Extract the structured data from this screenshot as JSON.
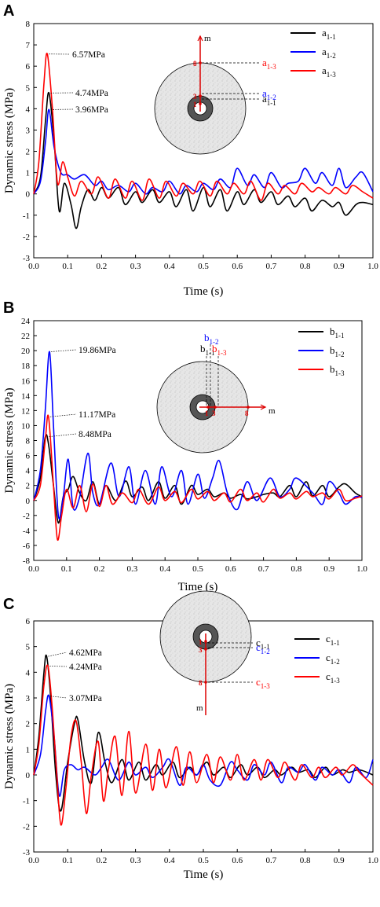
{
  "chart_data": [
    {
      "panel": "A",
      "type": "line",
      "xlabel": "Time (s)",
      "ylabel": "Dynamic stress (MPa)",
      "xlim": [
        0,
        1.0
      ],
      "ylim": [
        -3,
        8
      ],
      "xticks": [
        "0.0",
        "0.1",
        "0.2",
        "0.3",
        "0.4",
        "0.5",
        "0.6",
        "0.7",
        "0.8",
        "0.9",
        "1.0"
      ],
      "yticks": [
        "-3",
        "-2",
        "-1",
        "0",
        "1",
        "2",
        "3",
        "4",
        "5",
        "6",
        "7",
        "8"
      ],
      "grid": false,
      "legend_position": "top-right",
      "series": [
        {
          "name": "a",
          "sub": "1-1",
          "color": "#000000",
          "x": [
            0,
            0.02,
            0.035,
            0.045,
            0.06,
            0.075,
            0.09,
            0.11,
            0.125,
            0.14,
            0.16,
            0.18,
            0.2,
            0.22,
            0.25,
            0.27,
            0.3,
            0.32,
            0.35,
            0.37,
            0.4,
            0.42,
            0.45,
            0.47,
            0.5,
            0.52,
            0.55,
            0.57,
            0.6,
            0.62,
            0.65,
            0.67,
            0.7,
            0.72,
            0.75,
            0.77,
            0.8,
            0.82,
            0.85,
            0.88,
            0.9,
            0.92,
            0.95,
            0.97,
            1.0
          ],
          "y": [
            0,
            0.8,
            3.5,
            4.74,
            2.5,
            -0.8,
            0.5,
            -0.5,
            -1.62,
            -0.6,
            0.2,
            -0.3,
            0.3,
            -0.2,
            0.3,
            -0.5,
            0.1,
            -0.4,
            0.2,
            -0.4,
            0.1,
            -0.6,
            0.2,
            -0.8,
            0.3,
            -0.6,
            0.2,
            -0.8,
            0.1,
            -0.5,
            0.2,
            -0.4,
            0.1,
            -0.5,
            -0.1,
            -0.6,
            -0.2,
            -0.8,
            -0.3,
            -0.6,
            -0.4,
            -1.0,
            -0.5,
            -0.4,
            -0.5
          ]
        },
        {
          "name": "a",
          "sub": "1-2",
          "color": "#0000ff",
          "x": [
            0,
            0.02,
            0.035,
            0.045,
            0.06,
            0.08,
            0.1,
            0.12,
            0.15,
            0.18,
            0.2,
            0.22,
            0.25,
            0.28,
            0.3,
            0.33,
            0.35,
            0.38,
            0.4,
            0.43,
            0.45,
            0.48,
            0.5,
            0.53,
            0.55,
            0.58,
            0.6,
            0.63,
            0.65,
            0.68,
            0.7,
            0.73,
            0.75,
            0.78,
            0.8,
            0.83,
            0.85,
            0.88,
            0.9,
            0.92,
            0.95,
            0.97,
            1.0
          ],
          "y": [
            0,
            0.6,
            2.5,
            3.96,
            2.2,
            1.0,
            0.9,
            0.7,
            0.9,
            0.4,
            0.6,
            0.2,
            0.4,
            0.1,
            0.5,
            0.0,
            0.3,
            0.1,
            0.6,
            0.0,
            0.4,
            0.1,
            0.5,
            0.2,
            0.7,
            0.3,
            1.2,
            0.4,
            0.9,
            0.3,
            1.0,
            0.3,
            0.5,
            0.6,
            1.2,
            0.5,
            1.0,
            0.4,
            1.2,
            0.3,
            0.8,
            1.0,
            0.1
          ]
        },
        {
          "name": "a",
          "sub": "1-3",
          "color": "#ff0000",
          "x": [
            0,
            0.015,
            0.03,
            0.04,
            0.055,
            0.07,
            0.085,
            0.1,
            0.12,
            0.14,
            0.17,
            0.19,
            0.22,
            0.24,
            0.27,
            0.29,
            0.32,
            0.34,
            0.37,
            0.39,
            0.42,
            0.44,
            0.47,
            0.49,
            0.52,
            0.54,
            0.57,
            0.59,
            0.62,
            0.64,
            0.67,
            0.69,
            0.72,
            0.74,
            0.77,
            0.79,
            0.82,
            0.84,
            0.87,
            0.89,
            0.92,
            0.94,
            0.97,
            1.0
          ],
          "y": [
            0,
            1.5,
            5.2,
            6.57,
            4.0,
            0.5,
            1.5,
            0.8,
            -0.1,
            0.6,
            0.0,
            0.8,
            -0.2,
            0.7,
            -0.2,
            0.6,
            -0.3,
            0.7,
            -0.2,
            0.6,
            -0.1,
            0.5,
            0.0,
            0.6,
            -0.1,
            0.6,
            0.0,
            0.5,
            0.0,
            0.6,
            -0.3,
            0.5,
            0.0,
            0.4,
            0.0,
            0.5,
            0.1,
            0.3,
            0.0,
            0.3,
            0.0,
            0.4,
            0.1,
            -0.2
          ]
        }
      ],
      "annotations": [
        {
          "text": "6.57MPa",
          "x": 0.04,
          "y": 6.57
        },
        {
          "text": "4.74MPa",
          "x": 0.045,
          "y": 4.74
        },
        {
          "text": "3.96MPa",
          "x": 0.045,
          "y": 3.96
        }
      ],
      "diagram": {
        "axis_label": "m",
        "points": [
          "1",
          "3",
          "8"
        ],
        "labels": [
          {
            "name": "a",
            "sub": "1-3",
            "color": "#ff0000"
          },
          {
            "name": "a",
            "sub": "1-2",
            "color": "#0000ff"
          },
          {
            "name": "a",
            "sub": "1-1",
            "color": "#000000"
          }
        ]
      }
    },
    {
      "panel": "B",
      "type": "line",
      "xlabel": "Time (s)",
      "ylabel": "Dynamic stress (MPa)",
      "xlim": [
        0,
        1.0
      ],
      "ylim": [
        -8,
        24
      ],
      "xticks": [
        "0.0",
        "0.1",
        "0.2",
        "0.3",
        "0.4",
        "0.5",
        "0.6",
        "0.7",
        "0.8",
        "0.9",
        "1.0"
      ],
      "yticks": [
        "-8",
        "-6",
        "-4",
        "-2",
        "0",
        "2",
        "4",
        "6",
        "8",
        "10",
        "12",
        "14",
        "16",
        "18",
        "20",
        "22",
        "24"
      ],
      "grid": false,
      "legend_position": "top-right",
      "series": [
        {
          "name": "b",
          "sub": "1-1",
          "color": "#000000",
          "x": [
            0,
            0.02,
            0.035,
            0.045,
            0.06,
            0.075,
            0.09,
            0.105,
            0.12,
            0.14,
            0.16,
            0.18,
            0.2,
            0.22,
            0.25,
            0.28,
            0.3,
            0.33,
            0.35,
            0.38,
            0.4,
            0.43,
            0.45,
            0.48,
            0.5,
            0.53,
            0.55,
            0.58,
            0.6,
            0.63,
            0.65,
            0.68,
            0.7,
            0.73,
            0.75,
            0.78,
            0.8,
            0.83,
            0.85,
            0.88,
            0.9,
            0.93,
            0.95,
            0.98,
            1.0
          ],
          "y": [
            0,
            3.0,
            8.48,
            7.5,
            2.0,
            -3.0,
            0.5,
            1.5,
            3.2,
            1.0,
            0.0,
            2.5,
            -0.5,
            2.0,
            0.0,
            2.6,
            0.5,
            1.8,
            0.0,
            2.5,
            0.3,
            2.0,
            -0.5,
            2.0,
            0.8,
            1.5,
            0.5,
            1.0,
            0.3,
            0.8,
            0.2,
            0.5,
            0.8,
            1.0,
            0.5,
            2.0,
            0.5,
            2.5,
            0.6,
            2.0,
            0.5,
            1.8,
            2.2,
            1.0,
            0.5
          ]
        },
        {
          "name": "b",
          "sub": "1-2",
          "color": "#0000ff",
          "x": [
            0,
            0.02,
            0.035,
            0.048,
            0.06,
            0.075,
            0.09,
            0.105,
            0.12,
            0.14,
            0.165,
            0.18,
            0.2,
            0.235,
            0.26,
            0.29,
            0.31,
            0.34,
            0.37,
            0.39,
            0.42,
            0.45,
            0.47,
            0.5,
            0.52,
            0.545,
            0.565,
            0.59,
            0.62,
            0.65,
            0.68,
            0.72,
            0.75,
            0.78,
            0.8,
            0.85,
            0.88,
            0.9,
            0.93,
            0.95,
            0.98,
            1.0
          ],
          "y": [
            0,
            4.0,
            12.0,
            19.86,
            10.0,
            -2.0,
            0.5,
            5.5,
            -1.0,
            0.5,
            6.3,
            1.0,
            -0.5,
            5.0,
            0.5,
            4.5,
            -0.5,
            4.0,
            -0.5,
            4.5,
            0.5,
            4.0,
            -0.5,
            3.5,
            0.3,
            3.0,
            5.3,
            1.0,
            -1.2,
            2.5,
            0.0,
            3.0,
            0.5,
            1.5,
            3.0,
            1.0,
            -0.5,
            2.5,
            1.0,
            -0.5,
            0.5,
            0.4
          ]
        },
        {
          "name": "b",
          "sub": "1-3",
          "color": "#ff0000",
          "x": [
            0,
            0.02,
            0.035,
            0.045,
            0.06,
            0.072,
            0.085,
            0.1,
            0.12,
            0.14,
            0.16,
            0.18,
            0.2,
            0.22,
            0.24,
            0.27,
            0.3,
            0.32,
            0.35,
            0.38,
            0.4,
            0.43,
            0.45,
            0.48,
            0.5,
            0.53,
            0.55,
            0.58,
            0.6,
            0.63,
            0.65,
            0.68,
            0.7,
            0.73,
            0.75,
            0.78,
            0.8,
            0.83,
            0.85,
            0.88,
            0.9,
            0.93,
            0.95,
            0.98,
            1.0
          ],
          "y": [
            0,
            2.0,
            8.0,
            11.17,
            2.0,
            -5.2,
            -2.0,
            1.5,
            -1.0,
            2.0,
            -1.5,
            2.2,
            -0.8,
            2.0,
            -0.5,
            1.0,
            -0.3,
            1.5,
            -0.5,
            1.8,
            0.0,
            1.2,
            -0.3,
            1.5,
            0.2,
            1.2,
            0.0,
            1.0,
            -0.2,
            1.5,
            0.0,
            1.0,
            -0.2,
            1.5,
            0.3,
            1.0,
            0.2,
            1.2,
            0.5,
            1.0,
            0.2,
            1.5,
            0.0,
            0.3,
            0.6
          ]
        }
      ],
      "annotations": [
        {
          "text": "19.86MPa",
          "x": 0.048,
          "y": 19.86
        },
        {
          "text": "11.17MPa",
          "x": 0.045,
          "y": 11.17
        },
        {
          "text": "8.48MPa",
          "x": 0.035,
          "y": 8.48
        }
      ],
      "diagram": {
        "axis_label": "m",
        "points": [
          "1",
          "3",
          "8"
        ],
        "labels": [
          {
            "name": "b",
            "sub": "1-1",
            "color": "#000000"
          },
          {
            "name": "b",
            "sub": "1-2",
            "color": "#0000ff"
          },
          {
            "name": "b",
            "sub": "1-3",
            "color": "#ff0000"
          }
        ]
      }
    },
    {
      "panel": "C",
      "type": "line",
      "xlabel": "Time (s)",
      "ylabel": "Dynamic stress (MPa)",
      "xlim": [
        0,
        1.0
      ],
      "ylim": [
        -3,
        6
      ],
      "xticks": [
        "0.0",
        "0.1",
        "0.2",
        "0.3",
        "0.4",
        "0.5",
        "0.6",
        "0.7",
        "0.8",
        "0.9",
        "1.0"
      ],
      "yticks": [
        "-3",
        "-2",
        "-1",
        "0",
        "1",
        "2",
        "3",
        "4",
        "5",
        "6"
      ],
      "grid": false,
      "legend_position": "top-right",
      "series": [
        {
          "name": "c",
          "sub": "1-1",
          "color": "#000000",
          "x": [
            0,
            0.015,
            0.03,
            0.038,
            0.05,
            0.065,
            0.08,
            0.1,
            0.12,
            0.13,
            0.15,
            0.17,
            0.19,
            0.21,
            0.23,
            0.26,
            0.28,
            0.31,
            0.33,
            0.36,
            0.38,
            0.41,
            0.43,
            0.46,
            0.48,
            0.51,
            0.53,
            0.56,
            0.58,
            0.61,
            0.63,
            0.66,
            0.68,
            0.71,
            0.73,
            0.76,
            0.78,
            0.81,
            0.83,
            0.86,
            0.88,
            0.91,
            0.93,
            0.96,
            1.0
          ],
          "y": [
            0,
            1.5,
            4.0,
            4.62,
            3.0,
            0.0,
            -1.4,
            0.5,
            2.0,
            2.15,
            0.5,
            -0.3,
            1.65,
            0.5,
            -0.3,
            0.6,
            -0.2,
            0.5,
            -0.2,
            0.4,
            0.0,
            0.5,
            -0.1,
            0.3,
            0.0,
            0.5,
            0.0,
            0.3,
            -0.1,
            0.4,
            0.0,
            0.3,
            -0.1,
            0.2,
            0.0,
            0.3,
            0.1,
            0.2,
            -0.1,
            0.3,
            0.0,
            0.2,
            0.1,
            0.2,
            0.0
          ]
        },
        {
          "name": "c",
          "sub": "1-2",
          "color": "#0000ff",
          "x": [
            0,
            0.02,
            0.035,
            0.045,
            0.06,
            0.075,
            0.09,
            0.11,
            0.13,
            0.15,
            0.18,
            0.2,
            0.22,
            0.25,
            0.28,
            0.3,
            0.33,
            0.35,
            0.38,
            0.4,
            0.43,
            0.45,
            0.48,
            0.5,
            0.52,
            0.55,
            0.58,
            0.6,
            0.63,
            0.65,
            0.68,
            0.7,
            0.73,
            0.75,
            0.78,
            0.8,
            0.83,
            0.85,
            0.88,
            0.9,
            0.93,
            0.95,
            0.98,
            1.0
          ],
          "y": [
            0,
            0.8,
            2.5,
            3.07,
            1.5,
            -0.8,
            0.2,
            0.4,
            0.2,
            0.3,
            0.0,
            0.3,
            0.6,
            -0.2,
            0.5,
            0.0,
            0.3,
            -0.1,
            0.3,
            0.6,
            -0.4,
            0.3,
            0.0,
            0.4,
            -0.2,
            -0.4,
            0.5,
            0.2,
            -0.2,
            0.4,
            0.0,
            0.5,
            -0.3,
            0.3,
            0.1,
            0.4,
            -0.2,
            0.3,
            0.0,
            0.2,
            -0.3,
            0.3,
            -0.1,
            0.6
          ]
        },
        {
          "name": "c",
          "sub": "1-3",
          "color": "#ff0000",
          "x": [
            0,
            0.015,
            0.03,
            0.042,
            0.055,
            0.068,
            0.08,
            0.095,
            0.11,
            0.125,
            0.14,
            0.155,
            0.17,
            0.19,
            0.205,
            0.22,
            0.24,
            0.26,
            0.28,
            0.3,
            0.33,
            0.35,
            0.37,
            0.39,
            0.42,
            0.44,
            0.46,
            0.48,
            0.51,
            0.53,
            0.55,
            0.58,
            0.6,
            0.62,
            0.65,
            0.67,
            0.69,
            0.72,
            0.74,
            0.77,
            0.79,
            0.82,
            0.84,
            0.86,
            0.89,
            0.91,
            0.94,
            0.96,
            1.0
          ],
          "y": [
            0,
            1.2,
            3.5,
            4.24,
            2.5,
            0.0,
            -1.95,
            -0.5,
            1.5,
            2.1,
            0.5,
            -1.5,
            0.0,
            1.3,
            -1.0,
            0.2,
            1.5,
            -0.8,
            1.7,
            -0.7,
            1.2,
            -0.6,
            1.0,
            -0.5,
            1.1,
            -0.4,
            0.9,
            -0.3,
            0.8,
            -0.3,
            0.7,
            -0.2,
            0.8,
            -0.2,
            0.6,
            -0.2,
            0.6,
            -0.1,
            0.5,
            -0.2,
            0.4,
            -0.1,
            0.3,
            -0.1,
            0.3,
            0.0,
            0.4,
            0.1,
            -0.4
          ]
        }
      ],
      "annotations": [
        {
          "text": "4.62MPa",
          "x": 0.038,
          "y": 4.62
        },
        {
          "text": "4.24MPa",
          "x": 0.042,
          "y": 4.24
        },
        {
          "text": "3.07MPa",
          "x": 0.045,
          "y": 3.07
        }
      ],
      "diagram": {
        "axis_label": "m",
        "points": [
          "1",
          "3",
          "8"
        ],
        "labels": [
          {
            "name": "c",
            "sub": "1-1",
            "color": "#000000"
          },
          {
            "name": "c",
            "sub": "1-2",
            "color": "#0000ff"
          },
          {
            "name": "c",
            "sub": "1-3",
            "color": "#ff0000"
          }
        ]
      }
    }
  ]
}
